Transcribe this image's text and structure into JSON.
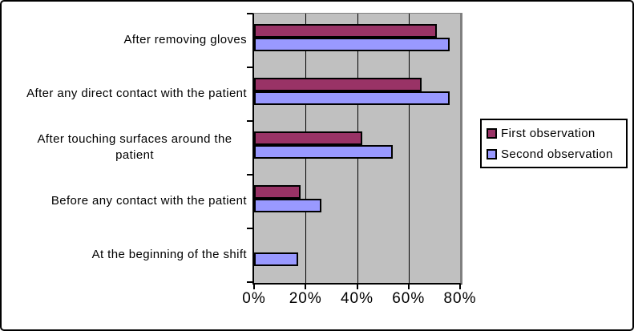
{
  "chart_data": {
    "type": "bar",
    "orientation": "horizontal",
    "title": "",
    "xlabel": "",
    "ylabel": "",
    "categories": [
      "After removing gloves",
      "After any direct contact with the patient",
      "After touching surfaces around the patient",
      "Before any contact with the patient",
      "At the beginning of the shift"
    ],
    "series": [
      {
        "name": "First observation",
        "color": "#993366",
        "values": [
          71,
          65,
          42,
          18,
          0
        ]
      },
      {
        "name": "Second observation",
        "color": "#9999FF",
        "values": [
          76,
          76,
          54,
          26,
          17
        ]
      }
    ],
    "x_tick_labels": [
      "0%",
      "20%",
      "40%",
      "60%",
      "80%"
    ],
    "xlim": [
      0,
      80
    ],
    "grid": true,
    "legend_position": "right",
    "plot_background": "#C0C0C0"
  },
  "colors": {
    "frame_border": "#000000",
    "plot_border_shadow": "#808080",
    "axis": "#000000",
    "gridline": "#000000",
    "bar_border": "#000000",
    "text": "#000000",
    "background": "#FFFFFF"
  }
}
